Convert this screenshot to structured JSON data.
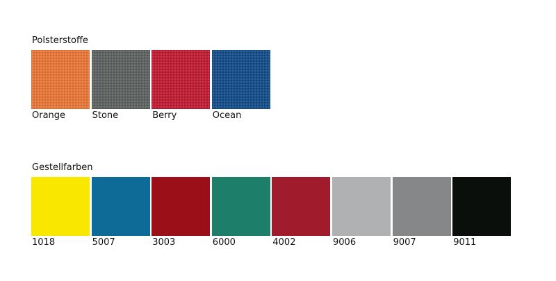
{
  "sections": [
    {
      "title": "Polsterstoffe",
      "swatches": [
        {
          "label": "Orange",
          "color": "#e8773a"
        },
        {
          "label": "Stone",
          "color": "#5f6362"
        },
        {
          "label": "Berry",
          "color": "#c01f35"
        },
        {
          "label": "Ocean",
          "color": "#174f8a"
        }
      ]
    },
    {
      "title": "Gestellfarben",
      "swatches": [
        {
          "label": "1018",
          "color": "#f9e700"
        },
        {
          "label": "5007",
          "color": "#0e6a97"
        },
        {
          "label": "3003",
          "color": "#9b0f18"
        },
        {
          "label": "6000",
          "color": "#1d7e69"
        },
        {
          "label": "4002",
          "color": "#a01b2c"
        },
        {
          "label": "9006",
          "color": "#b0b1b3"
        },
        {
          "label": "9007",
          "color": "#868788"
        },
        {
          "label": "9011",
          "color": "#0a0f0c"
        }
      ]
    }
  ]
}
